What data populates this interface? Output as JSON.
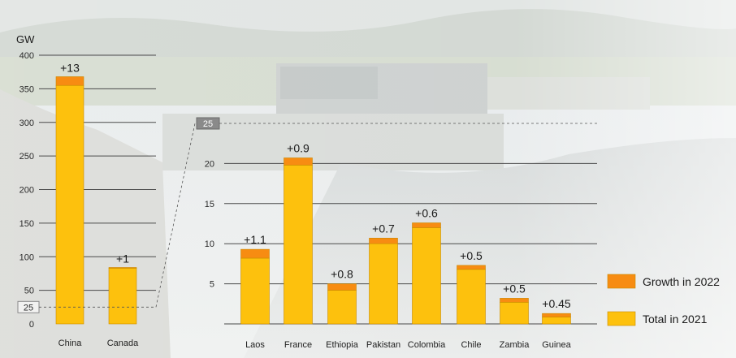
{
  "colors": {
    "total_2021": "#FDC10D",
    "growth_2022": "#F78C12",
    "bar_stroke": "#C98A00",
    "grid": "#4a4a4a",
    "marker_box": "#8a8a8a"
  },
  "background": {
    "description_icon": "hydropower-dam-photo"
  },
  "chart_data": [
    {
      "type": "bar",
      "stacked": true,
      "unit_label": "GW",
      "categories": [
        "China",
        "Canada"
      ],
      "series": [
        {
          "name": "Total in 2021",
          "values": [
            355,
            83
          ]
        },
        {
          "name": "Growth in 2022",
          "values": [
            13,
            1
          ]
        }
      ],
      "data_labels": [
        "+13",
        "+1"
      ],
      "yticks": [
        0,
        50,
        100,
        150,
        200,
        250,
        300,
        350,
        400
      ],
      "ylim": [
        0,
        400
      ],
      "grid": true,
      "zoom_marker": "25"
    },
    {
      "type": "bar",
      "stacked": true,
      "categories": [
        "Laos",
        "France",
        "Ethiopia",
        "Pakistan",
        "Colombia",
        "Chile",
        "Zambia",
        "Guinea"
      ],
      "series": [
        {
          "name": "Total in 2021",
          "values": [
            8.2,
            19.8,
            4.2,
            10.0,
            12.0,
            6.8,
            2.7,
            0.85
          ]
        },
        {
          "name": "Growth in 2022",
          "values": [
            1.1,
            0.9,
            0.8,
            0.7,
            0.6,
            0.5,
            0.5,
            0.45
          ]
        }
      ],
      "data_labels": [
        "+1.1",
        "+0.9",
        "+0.8",
        "+0.7",
        "+0.6",
        "+0.5",
        "+0.5",
        "+0.45"
      ],
      "yticks": [
        5,
        10,
        15,
        20
      ],
      "ylim": [
        0,
        25
      ],
      "grid": true,
      "zoom_marker": "25"
    }
  ],
  "legend": {
    "position": "bottom-right",
    "items": [
      {
        "label": "Growth in 2022",
        "color_key": "growth_2022"
      },
      {
        "label": "Total in 2021",
        "color_key": "total_2021"
      }
    ]
  }
}
